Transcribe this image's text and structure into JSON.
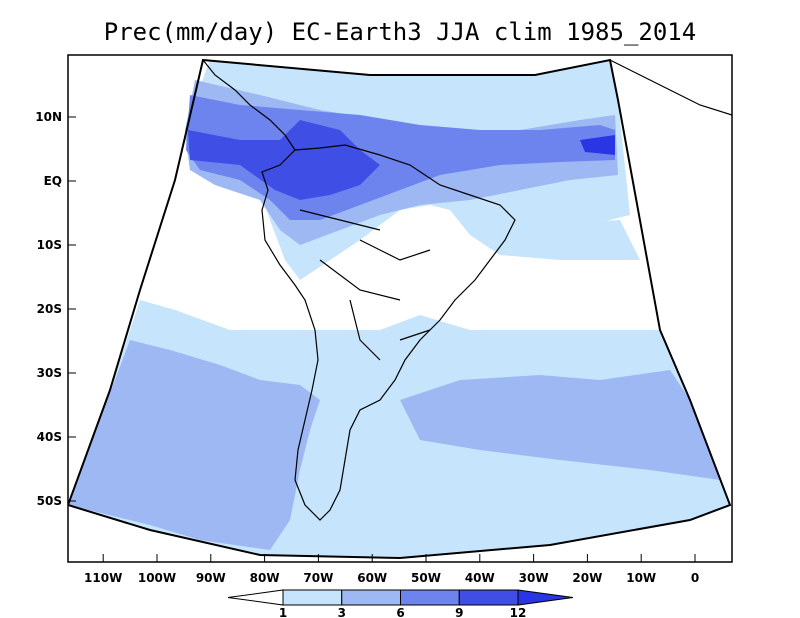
{
  "title": "Prec(mm/day) EC-Earth3 JJA clim 1985_2014",
  "chart_data": {
    "type": "map",
    "variable": "Precipitation",
    "units": "mm/day",
    "model": "EC-Earth3",
    "season": "JJA",
    "period": "1985_2014",
    "lat_ticks": [
      "10N",
      "EQ",
      "10S",
      "20S",
      "30S",
      "40S",
      "50S"
    ],
    "lat_values": [
      10,
      0,
      -10,
      -20,
      -30,
      -40,
      -50
    ],
    "lon_ticks": [
      "110W",
      "100W",
      "90W",
      "80W",
      "70W",
      "60W",
      "50W",
      "40W",
      "30W",
      "20W",
      "10W",
      "0"
    ],
    "lon_values": [
      -110,
      -100,
      -90,
      -80,
      -70,
      -60,
      -50,
      -40,
      -30,
      -20,
      -10,
      0
    ],
    "colorbar": {
      "levels": [
        "1",
        "3",
        "6",
        "9",
        "12"
      ],
      "level_values": [
        1,
        3,
        6,
        9,
        12
      ],
      "colors": [
        "#ffffff",
        "#c6e4fb",
        "#9eb8f3",
        "#6d84ef",
        "#3f4fe6",
        "#2a36e3"
      ]
    }
  }
}
